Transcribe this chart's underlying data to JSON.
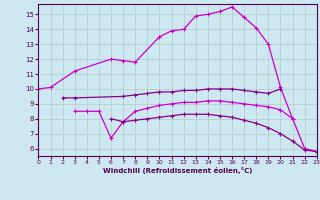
{
  "background_color": "#cde8f0",
  "grid_color": "#b0cccc",
  "xlim": [
    0,
    23
  ],
  "ylim": [
    5.5,
    15.7
  ],
  "yticks": [
    6,
    7,
    8,
    9,
    10,
    11,
    12,
    13,
    14,
    15
  ],
  "xticks": [
    0,
    1,
    2,
    3,
    4,
    5,
    6,
    7,
    8,
    9,
    10,
    11,
    12,
    13,
    14,
    15,
    16,
    17,
    18,
    19,
    20,
    21,
    22,
    23
  ],
  "xlabel": "Windchill (Refroidissement éolien,°C)",
  "line1_color": "#cc00cc",
  "line2_color": "#880088",
  "line3_color": "#cc00cc",
  "line4_color": "#880088",
  "line1": {
    "x": [
      0,
      1,
      3,
      6,
      7,
      8,
      10,
      11,
      12,
      13,
      14,
      15,
      16,
      17,
      18,
      19,
      20,
      21,
      22,
      23
    ],
    "y": [
      10.0,
      10.1,
      11.2,
      12.0,
      11.9,
      11.8,
      13.5,
      13.9,
      14.0,
      14.9,
      15.0,
      15.2,
      15.5,
      14.8,
      14.1,
      13.0,
      10.1,
      8.0,
      6.0,
      5.8
    ]
  },
  "line2": {
    "x": [
      2,
      3,
      7,
      8,
      9,
      10,
      11,
      12,
      13,
      14,
      15,
      16,
      17,
      18,
      19,
      20
    ],
    "y": [
      9.4,
      9.4,
      9.5,
      9.6,
      9.7,
      9.8,
      9.8,
      9.9,
      9.9,
      10.0,
      10.0,
      10.0,
      9.9,
      9.8,
      9.7,
      10.0
    ]
  },
  "line3": {
    "x": [
      3,
      4,
      5,
      6,
      7,
      8,
      9,
      10,
      11,
      12,
      13,
      14,
      15,
      16,
      17,
      18,
      19,
      20,
      21
    ],
    "y": [
      8.5,
      8.5,
      8.5,
      6.7,
      7.8,
      8.5,
      8.7,
      8.9,
      9.0,
      9.1,
      9.1,
      9.2,
      9.2,
      9.1,
      9.0,
      8.9,
      8.8,
      8.6,
      8.0
    ]
  },
  "line4": {
    "x": [
      6,
      7,
      8,
      9,
      10,
      11,
      12,
      13,
      14,
      15,
      16,
      17,
      18,
      19,
      20,
      21,
      22,
      23
    ],
    "y": [
      8.0,
      7.8,
      7.9,
      8.0,
      8.1,
      8.2,
      8.3,
      8.3,
      8.3,
      8.2,
      8.1,
      7.9,
      7.7,
      7.4,
      7.0,
      6.5,
      5.9,
      5.8
    ]
  }
}
